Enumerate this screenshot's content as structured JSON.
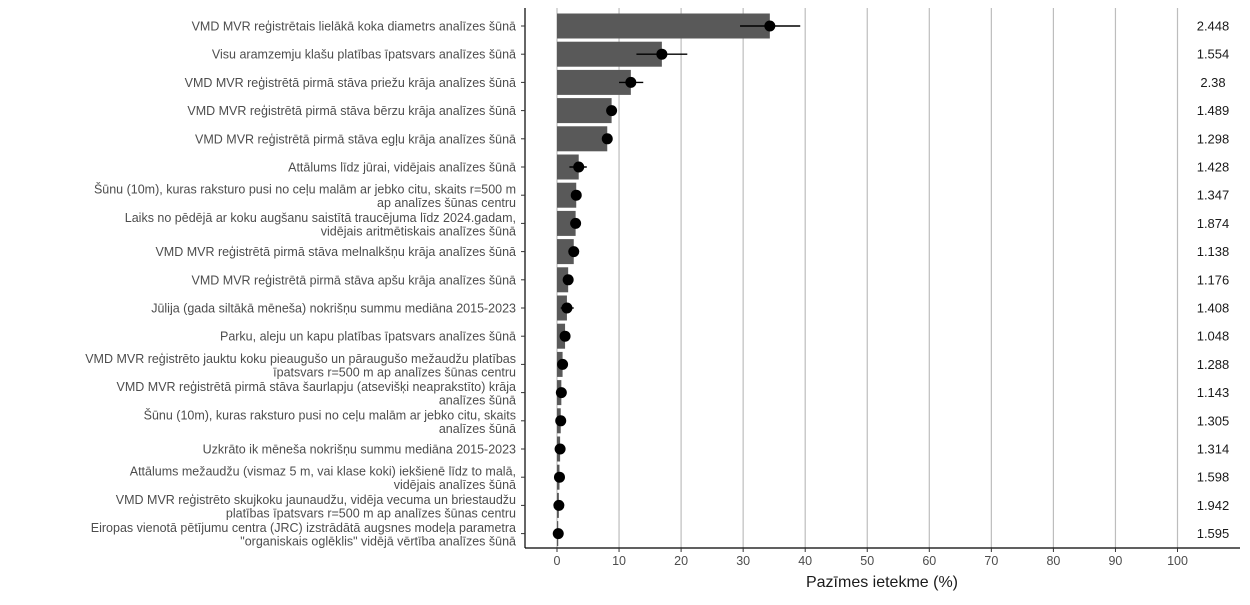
{
  "chart_data": {
    "type": "bar",
    "orientation": "horizontal",
    "xlabel": "Pazīmes ietekme (%)",
    "ylabel": "",
    "xlim": [
      -5,
      110
    ],
    "xticks": [
      0,
      10,
      20,
      30,
      40,
      50,
      60,
      70,
      80,
      90,
      100
    ],
    "grid": "vertical major lines",
    "bar_color": "#595959",
    "point_color": "#000000",
    "categories": [
      [
        "VMD MVR reģistrētais lielākā koka diametrs analīzes šūnā"
      ],
      [
        "Visu aramzemju klašu platības īpatsvars analīzes šūnā"
      ],
      [
        "VMD MVR reģistrētā pirmā stāva priežu krāja analīzes šūnā"
      ],
      [
        "VMD MVR reģistrētā pirmā stāva bērzu krāja analīzes šūnā"
      ],
      [
        "VMD MVR reģistrētā pirmā stāva egļu krāja analīzes šūnā"
      ],
      [
        "Attālums līdz jūrai, vidējais analīzes šūnā"
      ],
      [
        "Šūnu (10m), kuras raksturo pusi no ceļu malām ar jebko citu, skaits r=500 m",
        "ap analīzes šūnas centru"
      ],
      [
        "Laiks no pēdējā ar koku augšanu saistītā traucējuma līdz 2024.gadam,",
        "vidējais aritmētiskais analīzes šūnā"
      ],
      [
        "VMD MVR reģistrētā pirmā stāva melnalkšņu krāja analīzes šūnā"
      ],
      [
        "VMD MVR reģistrētā pirmā stāva apšu krāja analīzes šūnā"
      ],
      [
        "Jūlija (gada siltākā mēneša) nokrišņu summu mediāna 2015-2023"
      ],
      [
        "Parku, aleju un kapu platības īpatsvars analīzes šūnā"
      ],
      [
        "VMD MVR reģistrēto jauktu koku pieaugušo un pāraugušo mežaudžu platības",
        "īpatsvars r=500 m ap analīzes šūnas centru"
      ],
      [
        "VMD MVR reģistrētā pirmā stāva šaurlapju (atsevišķi neaprakstīto) krāja",
        "analīzes šūnā"
      ],
      [
        "Šūnu (10m), kuras raksturo pusi no ceļu malām ar jebko citu, skaits",
        "analīzes šūnā"
      ],
      [
        "Uzkrāto ik mēneša nokrišņu summu mediāna 2015-2023"
      ],
      [
        "Attālums mežaudžu (vismaz 5 m, vai klase koki) iekšienē līdz to malā,",
        "vidējais analīzes šūnā"
      ],
      [
        "VMD MVR reģistrēto skujkoku jaunaudžu, vidēja vecuma un briestaudžu",
        "platības īpatsvars r=500 m ap analīzes šūnas centru"
      ],
      [
        "Eiropas vienotā pētījumu centra (JRC) izstrādātā augsnes modeļa parametra",
        "\"organiskais oglēklis\" vidējā vērtība analīzes šūnā"
      ]
    ],
    "series": [
      {
        "values": [
          34.3,
          16.9,
          11.9,
          8.8,
          8.1,
          3.5,
          3.1,
          3.0,
          2.7,
          1.8,
          1.6,
          1.3,
          0.9,
          0.7,
          0.6,
          0.5,
          0.4,
          0.3,
          0.2
        ],
        "err_low": [
          29.5,
          12.8,
          10.0,
          8.1,
          7.7,
          2.0,
          2.4,
          2.3,
          2.1,
          1.3,
          0.6,
          0.8,
          0.5,
          0.4,
          0.3,
          0.1,
          0.0,
          0.0,
          0.0
        ],
        "err_high": [
          39.2,
          21.0,
          13.9,
          9.6,
          8.6,
          4.8,
          3.7,
          3.5,
          3.2,
          2.3,
          2.7,
          1.6,
          1.3,
          1.0,
          0.8,
          0.9,
          0.7,
          0.6,
          0.5
        ],
        "labels": [
          "2.448",
          "1.554",
          "2.38",
          "1.489",
          "1.298",
          "1.428",
          "1.347",
          "1.874",
          "1.138",
          "1.176",
          "1.408",
          "1.048",
          "1.288",
          "1.143",
          "1.305",
          "1.314",
          "1.598",
          "1.942",
          "1.595"
        ]
      }
    ]
  }
}
